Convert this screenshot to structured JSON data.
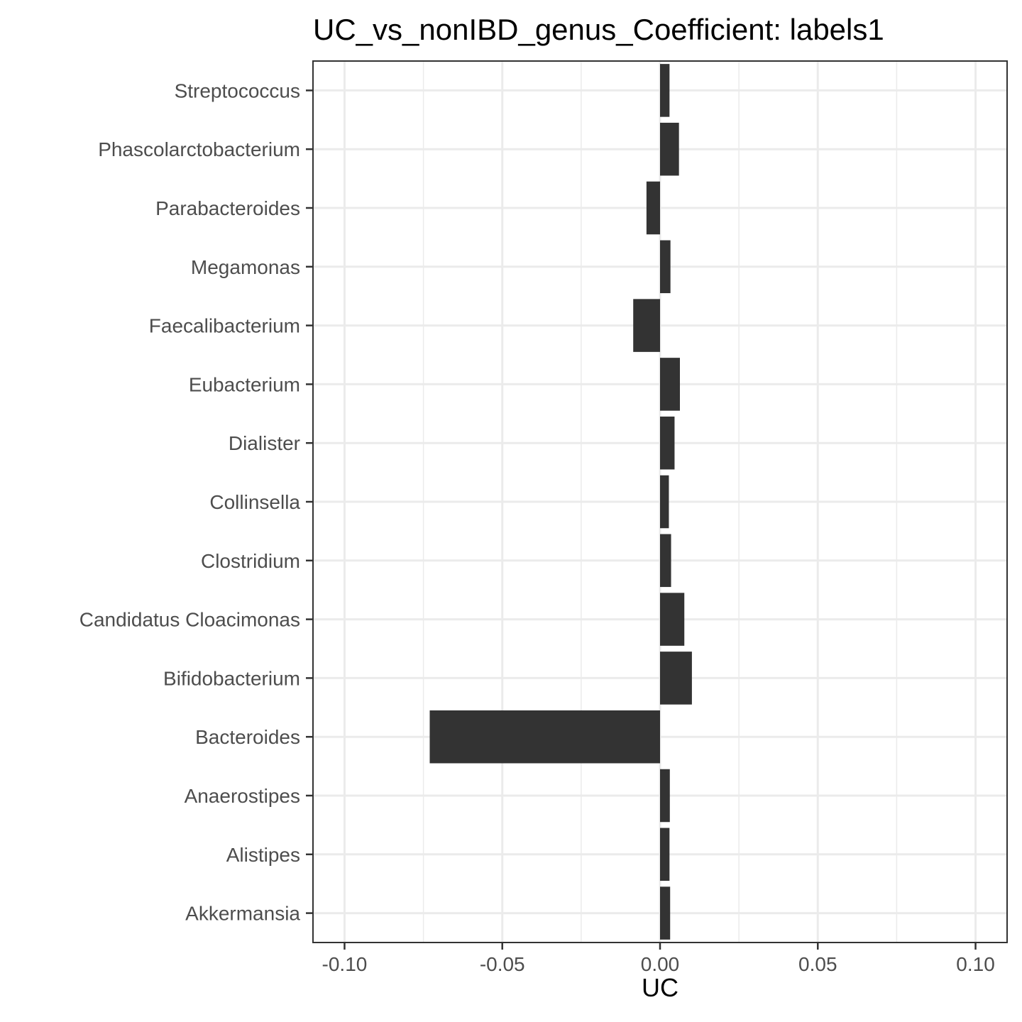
{
  "chart_data": {
    "type": "bar",
    "orientation": "horizontal",
    "title": "UC_vs_nonIBD_genus_Coefficient: labels1",
    "xlabel": "UC",
    "ylabel": "",
    "xlim": [
      -0.11,
      0.11
    ],
    "x_ticks": [
      -0.1,
      -0.05,
      0.0,
      0.05,
      0.1
    ],
    "x_tick_labels": [
      "-0.10",
      "-0.05",
      "0.00",
      "0.05",
      "0.10"
    ],
    "grid": true,
    "legend": "none",
    "bar_color": "#333333",
    "categories": [
      "Streptococcus",
      "Phascolarctobacterium",
      "Parabacteroides",
      "Megamonas",
      "Faecalibacterium",
      "Eubacterium",
      "Dialister",
      "Collinsella",
      "Clostridium",
      "Candidatus Cloacimonas",
      "Bifidobacterium",
      "Bacteroides",
      "Anaerostipes",
      "Alistipes",
      "Akkermansia"
    ],
    "values": [
      0.003,
      0.006,
      -0.0043,
      0.0033,
      -0.0085,
      0.0063,
      0.0046,
      0.0028,
      0.0035,
      0.0077,
      0.0101,
      -0.073,
      0.0031,
      0.003,
      0.0032
    ]
  }
}
